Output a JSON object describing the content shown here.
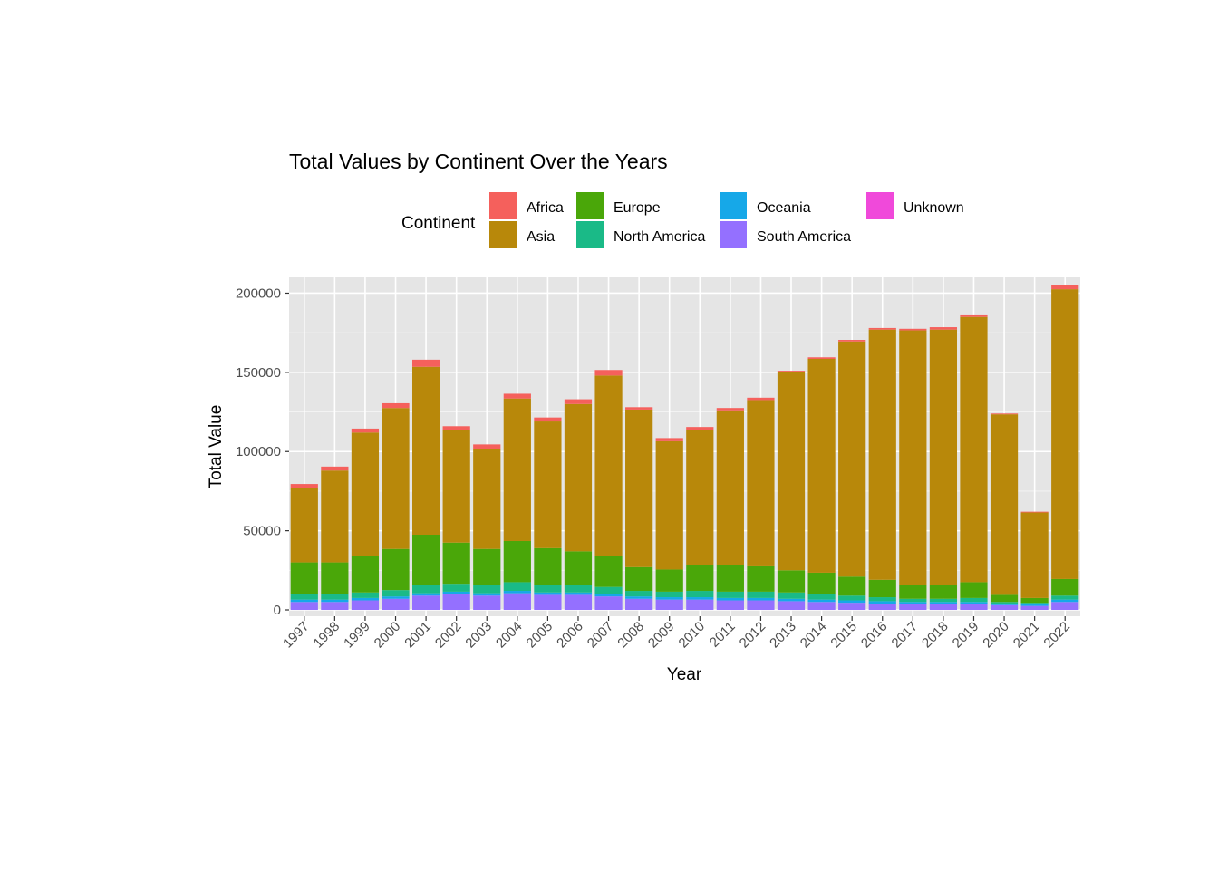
{
  "chart_data": {
    "type": "bar",
    "stacked": true,
    "title": "Total Values by Continent Over the Years",
    "xlabel": "Year",
    "ylabel": "Total Value",
    "ylim": [
      -4000,
      210000
    ],
    "yticks": [
      0,
      50000,
      100000,
      150000,
      200000
    ],
    "ytick_labels": [
      "0",
      "50000",
      "100000",
      "150000",
      "200000"
    ],
    "grid": true,
    "legend_title": "Continent",
    "legend_position": "top",
    "categories": [
      "1997",
      "1998",
      "1999",
      "2000",
      "2001",
      "2002",
      "2003",
      "2004",
      "2005",
      "2006",
      "2007",
      "2008",
      "2009",
      "2010",
      "2011",
      "2012",
      "2013",
      "2014",
      "2015",
      "2016",
      "2017",
      "2018",
      "2019",
      "2020",
      "2021",
      "2022"
    ],
    "series": [
      {
        "name": "South America",
        "color": "#9470FF",
        "values": [
          5000,
          5000,
          6000,
          7000,
          9000,
          10000,
          9000,
          10500,
          9500,
          9500,
          8500,
          7000,
          6500,
          6500,
          6000,
          6000,
          5500,
          5000,
          4500,
          4000,
          3500,
          3500,
          3500,
          3000,
          2500,
          5000
        ]
      },
      {
        "name": "Oceania",
        "color": "#16A8E8",
        "values": [
          1500,
          1500,
          1500,
          1500,
          1500,
          1500,
          1500,
          1500,
          1500,
          1500,
          1500,
          1500,
          1500,
          1500,
          1500,
          1500,
          1500,
          1500,
          1500,
          1500,
          1500,
          1500,
          1500,
          1000,
          1000,
          1500
        ]
      },
      {
        "name": "North America",
        "color": "#1ABA87",
        "values": [
          3500,
          3500,
          3500,
          4000,
          5500,
          5000,
          5000,
          5500,
          5000,
          5000,
          4500,
          3500,
          3500,
          4000,
          4000,
          4000,
          4000,
          3500,
          3000,
          2500,
          2000,
          2000,
          2500,
          1000,
          1000,
          2500
        ]
      },
      {
        "name": "Europe",
        "color": "#4AA709",
        "values": [
          20000,
          20000,
          23000,
          26000,
          31500,
          26000,
          23000,
          26000,
          23000,
          21000,
          19500,
          15000,
          14000,
          16500,
          17000,
          16000,
          14000,
          13500,
          12000,
          11000,
          9000,
          9000,
          10000,
          4500,
          3000,
          10500
        ]
      },
      {
        "name": "Asia",
        "color": "#B8880A",
        "values": [
          47000,
          58000,
          78000,
          89000,
          106000,
          71000,
          63000,
          90000,
          80000,
          93000,
          114000,
          99500,
          81000,
          85000,
          97500,
          105000,
          125000,
          135000,
          148500,
          158000,
          160500,
          161000,
          167500,
          114000,
          54000,
          183000
        ]
      },
      {
        "name": "Africa",
        "color": "#F5605C",
        "values": [
          2500,
          2500,
          2500,
          3000,
          4500,
          2500,
          3000,
          3000,
          2500,
          3000,
          3500,
          1500,
          2000,
          2000,
          1500,
          1500,
          1000,
          1000,
          1000,
          1000,
          1000,
          1500,
          1000,
          500,
          500,
          2500
        ]
      },
      {
        "name": "Unknown",
        "color": "#F049DA",
        "values": [
          0,
          0,
          0,
          0,
          0,
          0,
          0,
          0,
          0,
          0,
          0,
          0,
          0,
          0,
          0,
          0,
          0,
          0,
          0,
          0,
          0,
          0,
          0,
          0,
          0,
          0
        ]
      }
    ],
    "legend_order": [
      "Africa",
      "Asia",
      "Europe",
      "North America",
      "Oceania",
      "South America",
      "Unknown"
    ]
  }
}
